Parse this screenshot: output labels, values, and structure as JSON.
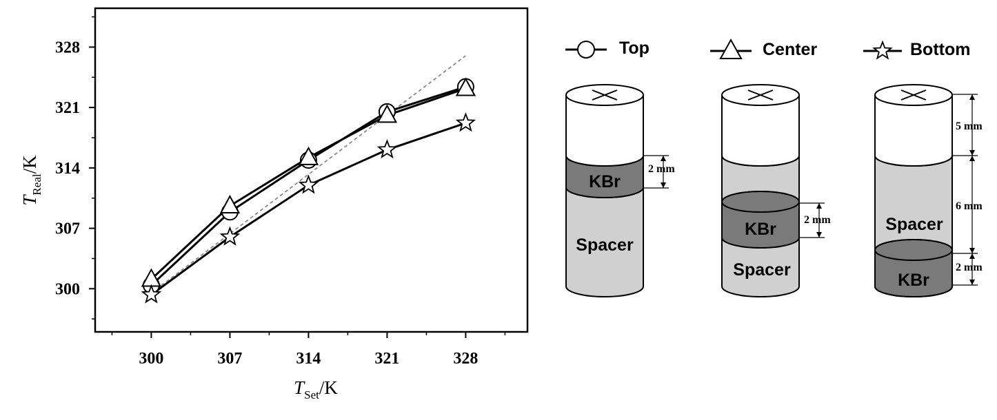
{
  "chart_data": {
    "type": "line",
    "x": [
      300,
      307,
      314,
      321,
      328
    ],
    "series": [
      {
        "name": "Top",
        "marker": "circle",
        "values": [
          300.4,
          308.9,
          314.9,
          320.5,
          323.4
        ]
      },
      {
        "name": "Center",
        "marker": "triangle",
        "values": [
          301.1,
          309.6,
          315.2,
          320.1,
          323.2
        ]
      },
      {
        "name": "Bottom",
        "marker": "star",
        "values": [
          299.3,
          306.0,
          312.0,
          316.1,
          319.2
        ]
      }
    ],
    "reference_line": {
      "style": "dashed",
      "color": "#888888",
      "x": [
        300,
        328
      ],
      "y": [
        299.5,
        327.0
      ]
    },
    "xlabel": {
      "main": "T",
      "sub": "Set",
      "unit": "/K"
    },
    "ylabel": {
      "main": "T",
      "sub": "Real",
      "unit": "/K"
    },
    "xticks": [
      "300",
      "307",
      "314",
      "321",
      "328"
    ],
    "yticks": [
      "300",
      "307",
      "314",
      "321",
      "328"
    ],
    "xlim": [
      295,
      333.5
    ],
    "ylim": [
      295,
      332.5
    ],
    "grid": false,
    "legend_position": "top-right, outside the plot"
  },
  "schematics": [
    {
      "id": "top",
      "layers": [
        "KBr",
        "Spacer"
      ],
      "dimensions": [
        "2 mm"
      ]
    },
    {
      "id": "center",
      "layers": [
        "KBr",
        "Spacer"
      ],
      "dimensions": [
        "2 mm"
      ]
    },
    {
      "id": "bottom",
      "layers": [
        "Spacer",
        "KBr"
      ],
      "dimensions": [
        "5 mm",
        "6 mm",
        "2 mm"
      ]
    }
  ],
  "colors": {
    "line": "#000000",
    "reference": "#888888",
    "spacer": "#d0d0d0",
    "kbr": "#7a7a7a",
    "background": "#ffffff"
  }
}
